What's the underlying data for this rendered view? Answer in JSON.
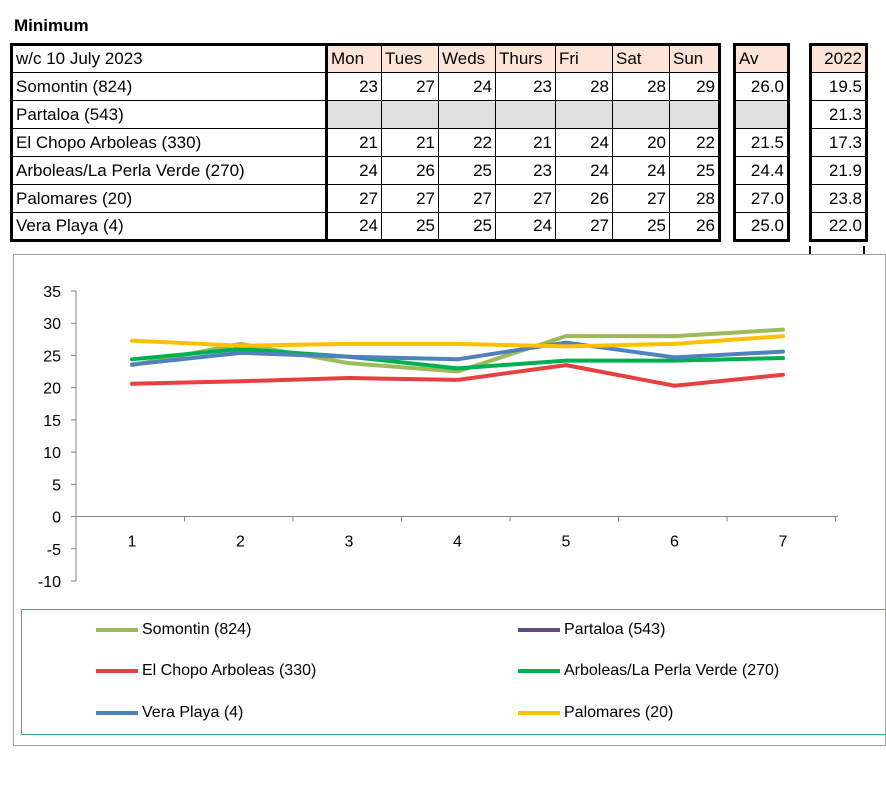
{
  "sheet": {
    "title": "Minimum",
    "week_label": "w/c 10 July 2023",
    "days": [
      "Mon",
      "Tues",
      "Weds",
      "Thurs",
      "Fri",
      "Sat",
      "Sun"
    ],
    "av_header": "Av",
    "year_header": "2022",
    "rows": [
      {
        "name": "Somontin (824)",
        "values": [
          "23",
          "27",
          "24",
          "23",
          "28",
          "28",
          "29"
        ],
        "av": "26.0",
        "y2022": "19.5"
      },
      {
        "name": "Partaloa (543)",
        "values": [
          "",
          "",
          "",
          "",
          "",
          "",
          ""
        ],
        "av": "",
        "y2022": "21.3"
      },
      {
        "name": "El Chopo Arboleas (330)",
        "values": [
          "21",
          "21",
          "22",
          "21",
          "24",
          "20",
          "22"
        ],
        "av": "21.5",
        "y2022": "17.3"
      },
      {
        "name": "Arboleas/La Perla Verde (270)",
        "values": [
          "24",
          "26",
          "25",
          "23",
          "24",
          "24",
          "25"
        ],
        "av": "24.4",
        "y2022": "21.9"
      },
      {
        "name": "Palomares (20)",
        "values": [
          "27",
          "27",
          "27",
          "27",
          "26",
          "27",
          "28"
        ],
        "av": "27.0",
        "y2022": "23.8"
      },
      {
        "name": "Vera Playa (4)",
        "values": [
          "24",
          "25",
          "25",
          "24",
          "27",
          "25",
          "26"
        ],
        "av": "25.0",
        "y2022": "22.0"
      }
    ]
  },
  "chart_data": {
    "type": "line",
    "x": [
      1,
      2,
      3,
      4,
      5,
      6,
      7
    ],
    "ylim": [
      -10,
      35
    ],
    "yticks": [
      35,
      30,
      25,
      20,
      15,
      10,
      5,
      0,
      -5,
      -10
    ],
    "grid": "horizontal-none",
    "legend_position": "bottom",
    "series": [
      {
        "name": "Somontin (824)",
        "color": "#9bbb59",
        "values": [
          23.5,
          26.8,
          23.8,
          22.5,
          28,
          28,
          29
        ]
      },
      {
        "name": "Partaloa (543)",
        "color": "#604a7b",
        "values": [
          null,
          null,
          null,
          null,
          null,
          null,
          null
        ]
      },
      {
        "name": "El Chopo Arboleas (330)",
        "color": "#e84040",
        "values": [
          20.6,
          21,
          21.5,
          21.2,
          23.5,
          20.3,
          22
        ]
      },
      {
        "name": "Arboleas/La Perla Verde (270)",
        "color": "#00b050",
        "values": [
          24.4,
          26,
          24.8,
          23,
          24.2,
          24.2,
          24.6
        ]
      },
      {
        "name": "Vera Playa (4)",
        "color": "#4f81bd",
        "values": [
          23.6,
          25.4,
          24.8,
          24.4,
          27,
          24.7,
          25.6
        ]
      },
      {
        "name": "Palomares (20)",
        "color": "#ffc000",
        "values": [
          27.3,
          26.5,
          26.8,
          26.8,
          26.4,
          26.8,
          28
        ]
      }
    ]
  }
}
